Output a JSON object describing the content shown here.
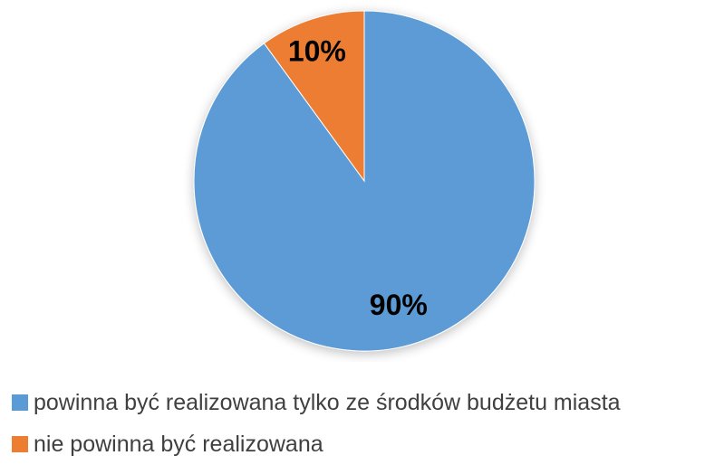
{
  "chart_data": {
    "type": "pie",
    "series": [
      {
        "name": "powinna być realizowana tylko ze środków budżetu miasta",
        "value": 90,
        "label": "90%",
        "color": "#5B9BD5"
      },
      {
        "name": "nie powinna być realizowana",
        "value": 10,
        "label": "10%",
        "color": "#ED7D31"
      }
    ],
    "legend_position": "bottom-left",
    "start_angle": "12 o'clock",
    "direction": "clockwise"
  }
}
